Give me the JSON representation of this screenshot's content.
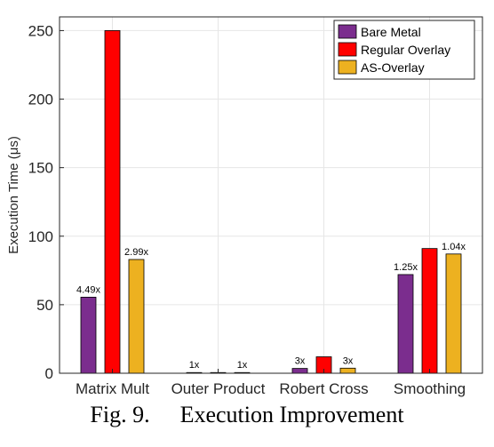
{
  "caption": {
    "prefix": "Fig. 9.",
    "title": "Execution Improvement"
  },
  "chart_data": {
    "type": "bar",
    "categories": [
      "Matrix Mult",
      "Outer Product",
      "Robert Cross",
      "Smoothing"
    ],
    "ylabel": "Execution Time (μs)",
    "xlabel": "",
    "ylim": [
      0,
      260
    ],
    "yticks": [
      0,
      50,
      100,
      150,
      200,
      250
    ],
    "grid": true,
    "legend_position": "top-right",
    "series": [
      {
        "name": "Bare Metal",
        "color": "#7b2d8e",
        "values": [
          55.5,
          0.5,
          3.5,
          72
        ],
        "labels": [
          "4.49x",
          "1x",
          "3x",
          "1.25x"
        ]
      },
      {
        "name": "Regular Overlay",
        "color": "#ff0000",
        "values": [
          250,
          0.5,
          12,
          91
        ],
        "labels": [
          "",
          "",
          "",
          ""
        ]
      },
      {
        "name": "AS-Overlay",
        "color": "#edb120",
        "values": [
          83,
          0.5,
          3.7,
          87
        ],
        "labels": [
          "2.99x",
          "1x",
          "3x",
          "1.04x"
        ]
      }
    ]
  }
}
